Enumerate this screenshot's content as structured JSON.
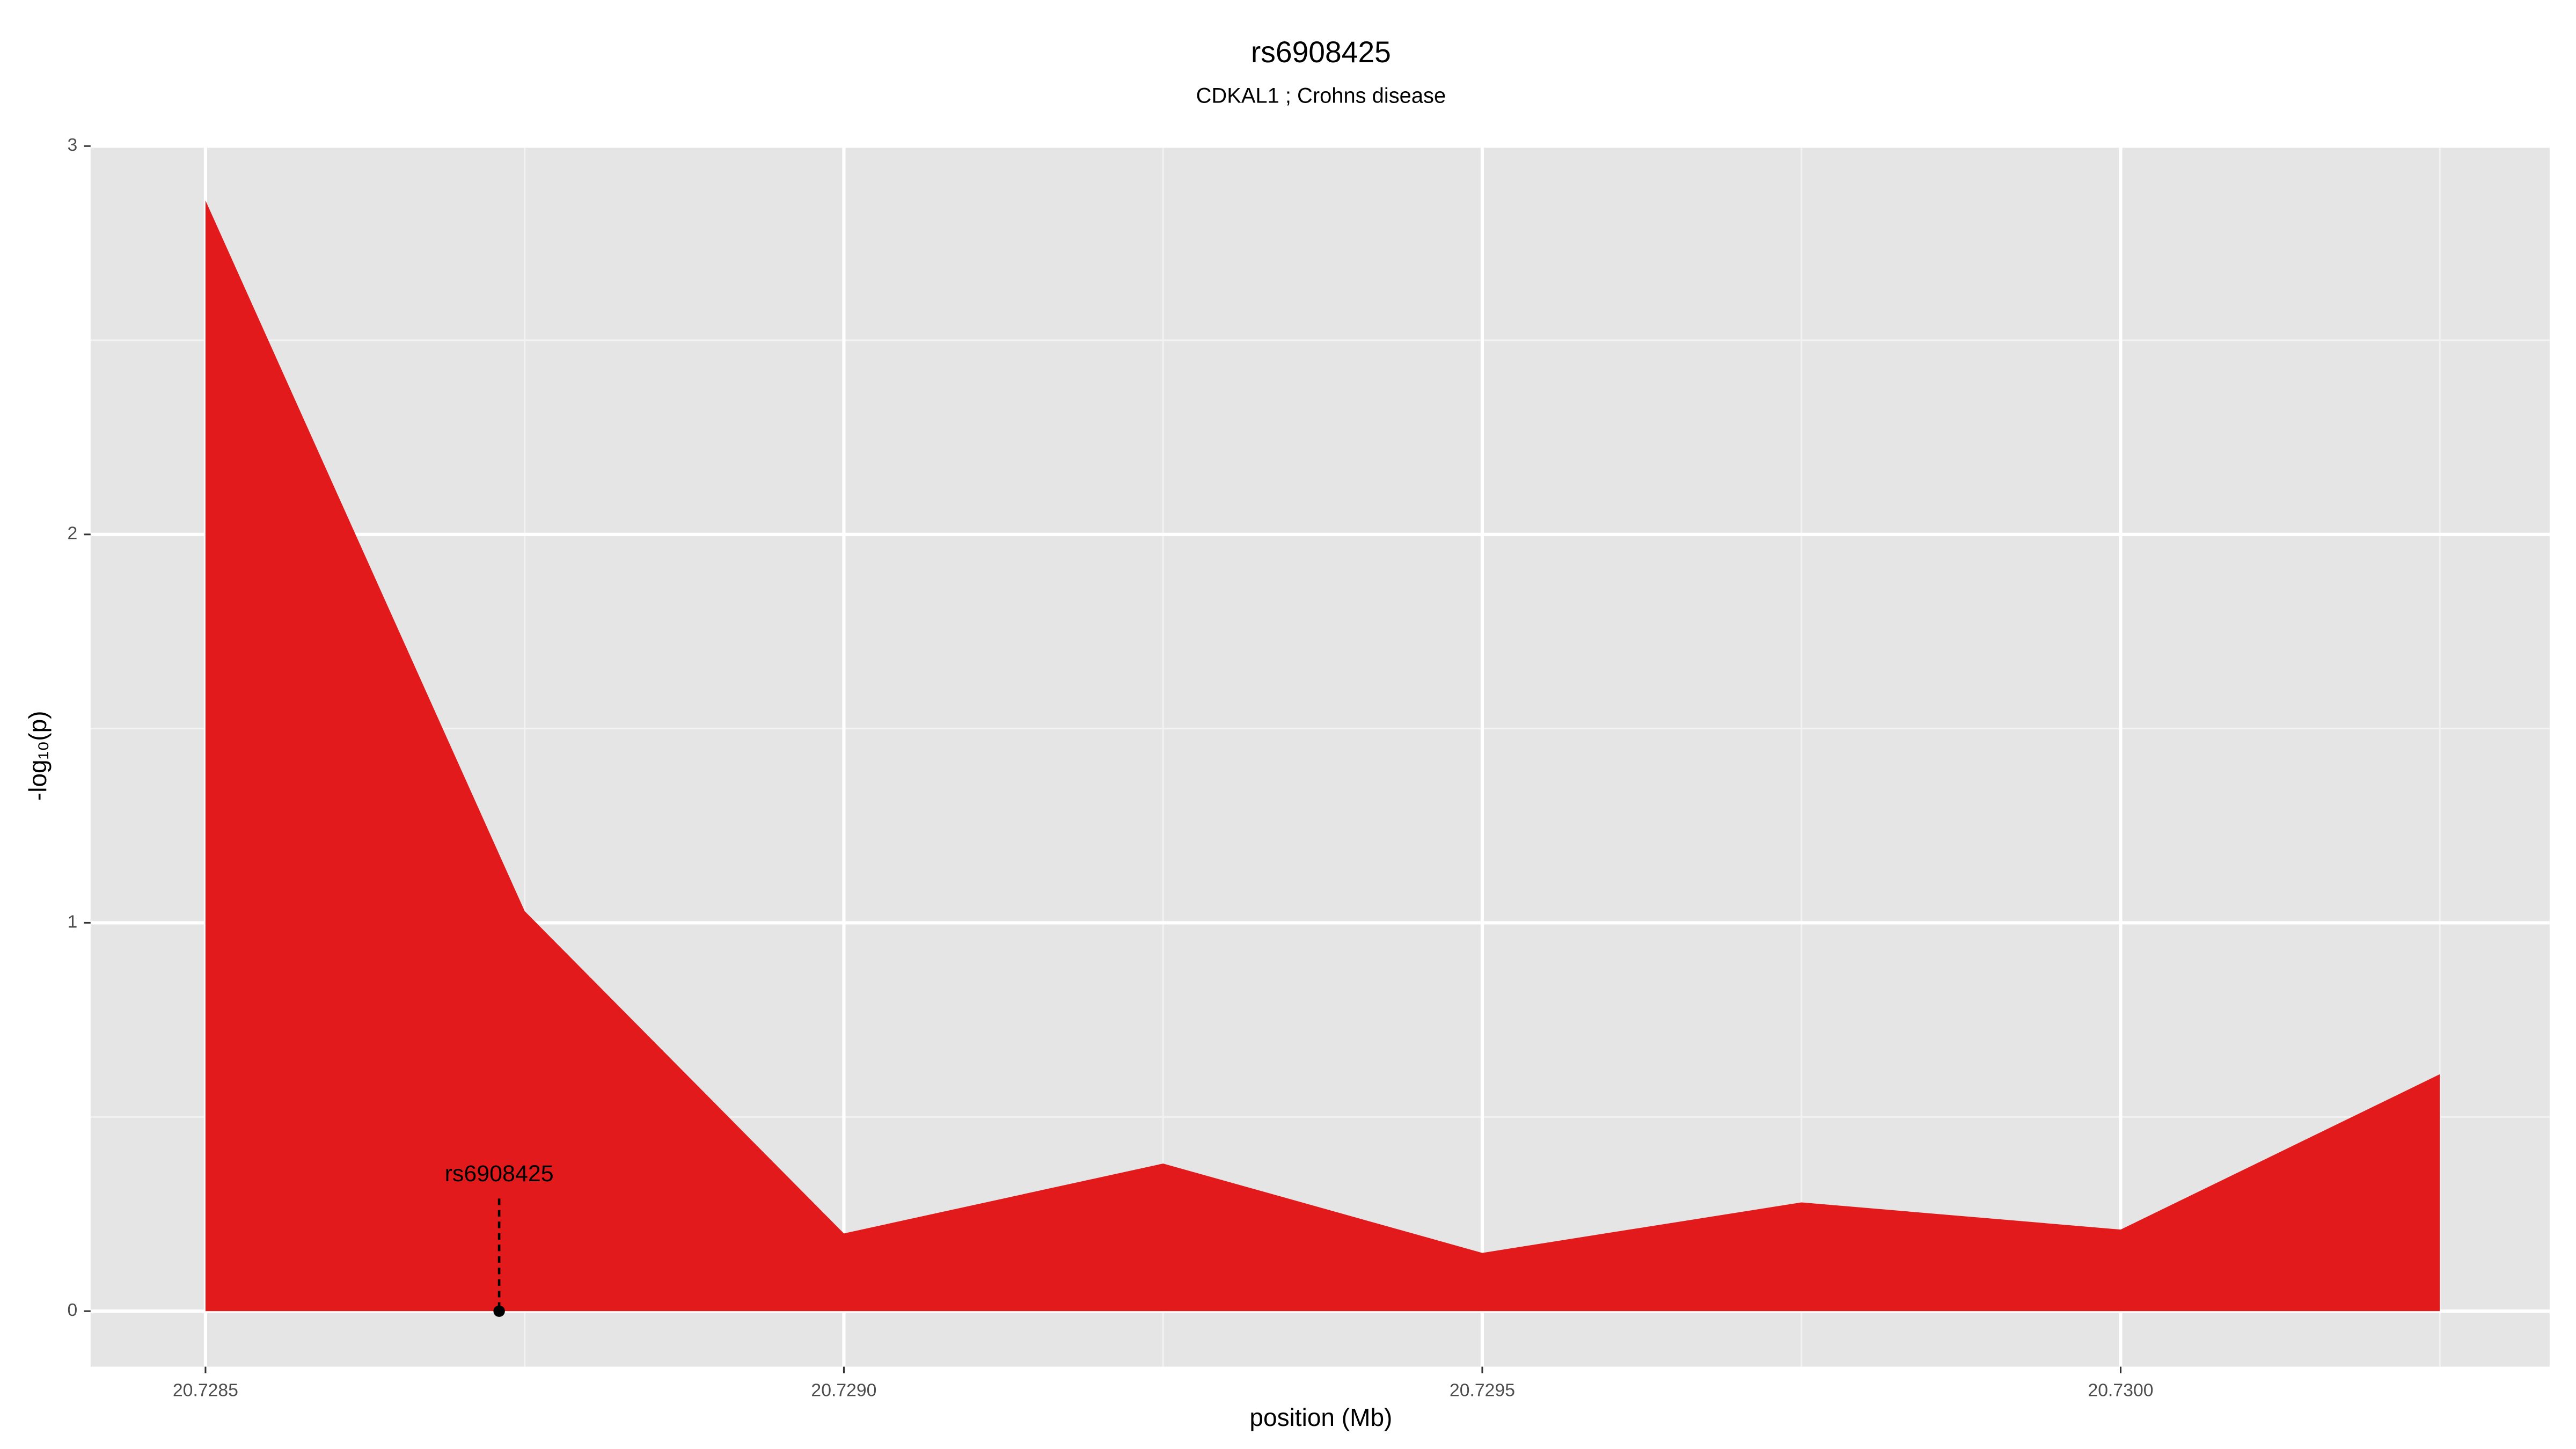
{
  "chart_data": {
    "type": "area",
    "title": "rs6908425",
    "subtitle": "CDKAL1 ; Crohns disease",
    "xlabel": "position (Mb)",
    "ylabel": "-log₁₀(p)",
    "x": [
      20.7285,
      20.72875,
      20.729,
      20.72925,
      20.7295,
      20.72975,
      20.73,
      20.73025
    ],
    "values": [
      2.86,
      1.03,
      0.2,
      0.38,
      0.15,
      0.28,
      0.21,
      0.61
    ],
    "color": "#e31a1c",
    "xlim": [
      20.72841,
      20.730336
    ],
    "ylim": [
      -0.143,
      3.003
    ],
    "xticks": [
      20.7285,
      {
        "value": 20.729,
        "label": "20.7290"
      },
      {
        "value": 20.7295,
        "label": "20.7295"
      },
      {
        "value": 20.73,
        "label": "20.7300"
      }
    ],
    "minor_xticks": [
      20.72875,
      20.72925,
      20.72975,
      20.73025
    ],
    "yticks": [
      0,
      1,
      2,
      3
    ],
    "minor_yticks": [
      0.5,
      1.5,
      2.5
    ],
    "grid": true,
    "annotation": {
      "label": "rs6908425",
      "x": 20.72873,
      "y": 0,
      "line_top": 0.29,
      "label_y": 0.35
    }
  }
}
